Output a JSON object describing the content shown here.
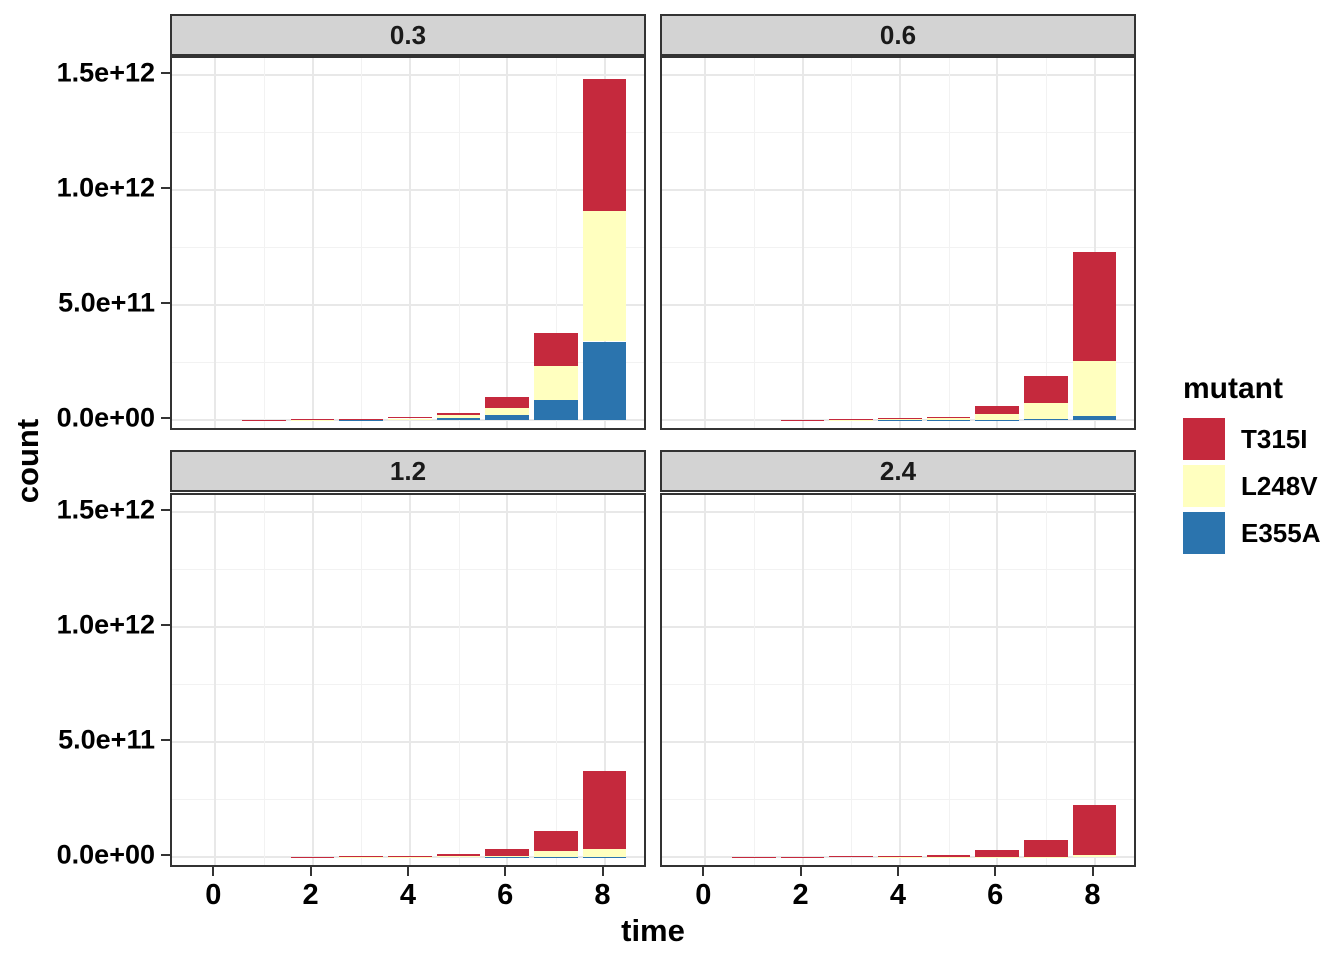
{
  "chart_data": {
    "type": "bar",
    "stacked": true,
    "title": "",
    "xlabel": "time",
    "ylabel": "count",
    "facet_variable_values": [
      "0.3",
      "0.6",
      "1.2",
      "2.4"
    ],
    "x_ticks": [
      0,
      2,
      4,
      6,
      8
    ],
    "x_tick_labels": [
      "0",
      "2",
      "4",
      "6",
      "8"
    ],
    "y_tick_values": [
      0,
      500000000000,
      1000000000000,
      1500000000000
    ],
    "y_tick_labels": [
      "0.0e+00",
      "5.0e+11",
      "1.0e+12",
      "1.5e+12"
    ],
    "y_minor_values": [
      250000000000,
      750000000000,
      1250000000000
    ],
    "x_minor_values": [
      1,
      3,
      5,
      7
    ],
    "xlim": [
      -0.9,
      8.9
    ],
    "ylim": [
      -75000000000,
      1575000000000
    ],
    "grid": true,
    "legend": {
      "title": "mutant",
      "position": "right"
    },
    "series": [
      {
        "name": "T315I",
        "color": "#C5293D"
      },
      {
        "name": "L248V",
        "color": "#FFFFBF"
      },
      {
        "name": "E355A",
        "color": "#2B74AE"
      }
    ],
    "stack_order_bottom_to_top": [
      "E355A",
      "L248V",
      "T315I"
    ],
    "times": [
      1,
      2,
      3,
      4,
      5,
      6,
      7,
      8
    ],
    "facets": [
      {
        "label": "0.3",
        "values": {
          "T315I": [
            400000000.0,
            1000000000.0,
            2000000000.0,
            4500000000.0,
            10000000000.0,
            51000000000.0,
            144000000000.0,
            575000000000.0
          ],
          "L248V": [
            400000000.0,
            1000000000.0,
            2000000000.0,
            4000000000.0,
            12000000000.0,
            29000000000.0,
            148000000000.0,
            566000000000.0
          ],
          "E355A": [
            200000000.0,
            600000000.0,
            1200000000.0,
            2500000000.0,
            9000000000.0,
            21000000000.0,
            88000000000.0,
            341000000000.0
          ]
        }
      },
      {
        "label": "0.6",
        "values": {
          "T315I": [
            200000000.0,
            500000000.0,
            1300000000.0,
            4000000000.0,
            8000000000.0,
            35000000000.0,
            119000000000.0,
            474000000000.0
          ],
          "L248V": [
            100000000.0,
            300000000.0,
            800000000.0,
            2300000000.0,
            6000000000.0,
            25000000000.0,
            70000000000.0,
            240000000000.0
          ],
          "E355A": [
            100000000.0,
            200000000.0,
            400000000.0,
            700000000.0,
            1000000000.0,
            2000000000.0,
            4000000000.0,
            17000000000.0
          ]
        }
      },
      {
        "label": "1.2",
        "values": {
          "T315I": [
            200000000.0,
            600000000.0,
            1600000000.0,
            3500000000.0,
            10000000000.0,
            30500000000.0,
            85000000000.0,
            341000000000.0
          ],
          "L248V": [
            200000000.0,
            1000000000.0,
            1500000000.0,
            1800000000.0,
            2500000000.0,
            5000000000.0,
            26000000000.0,
            32000000000.0
          ],
          "E355A": [
            0,
            100000000.0,
            100000000.0,
            200000000.0,
            300000000.0,
            500000000.0,
            1000000000.0,
            2000000000.0
          ]
        }
      },
      {
        "label": "2.4",
        "values": {
          "T315I": [
            500000000.0,
            1800000000.0,
            3700000000.0,
            6000000000.0,
            8500000000.0,
            28000000000.0,
            71000000000.0,
            218000000000.0
          ],
          "L248V": [
            100000000.0,
            300000000.0,
            300000000.0,
            500000000.0,
            500000000.0,
            1000000000.0,
            2000000000.0,
            7000000000.0
          ],
          "E355A": [
            0,
            0,
            0,
            0,
            0,
            0,
            0,
            0
          ]
        }
      }
    ]
  },
  "colors": {
    "strip_fill": "#D3D3D3",
    "panel_border": "#333333",
    "grid_major": "#E8E8E8",
    "grid_minor": "#F2F2F2",
    "text": "#000000"
  }
}
